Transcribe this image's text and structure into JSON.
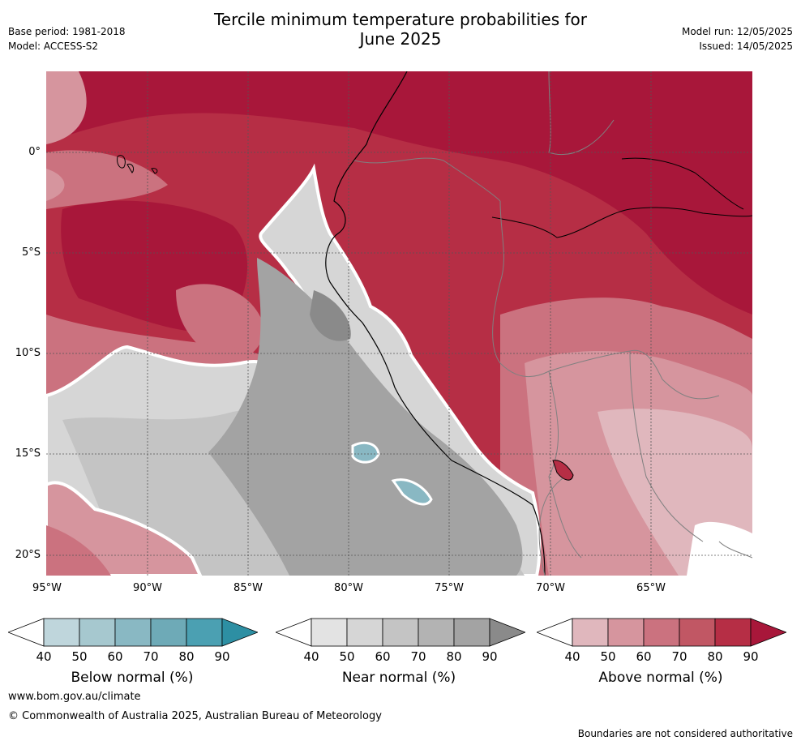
{
  "header": {
    "title_line1": "Tercile minimum temperature probabilities for",
    "title_line2": "June 2025",
    "base_period": "Base period: 1981-2018",
    "model": "Model: ACCESS-S2",
    "model_run": "Model run: 12/05/2025",
    "issued": "Issued: 14/05/2025"
  },
  "map": {
    "lat_labels": [
      "0°",
      "5°S",
      "10°S",
      "15°S",
      "20°S"
    ],
    "lon_labels": [
      "95°W",
      "90°W",
      "85°W",
      "80°W",
      "75°W",
      "70°W",
      "65°W"
    ]
  },
  "colorbars": [
    {
      "label": "Below normal (%)",
      "ticks": [
        "40",
        "50",
        "60",
        "70",
        "80",
        "90"
      ],
      "colors": [
        "#bfd6dc",
        "#a6c8cf",
        "#89b8c3",
        "#6eaab7",
        "#4ba0b2",
        "#2d8fa3"
      ]
    },
    {
      "label": "Near normal (%)",
      "ticks": [
        "40",
        "50",
        "60",
        "70",
        "80",
        "90"
      ],
      "colors": [
        "#e3e3e3",
        "#d6d6d6",
        "#c4c4c4",
        "#b3b3b3",
        "#a3a3a3",
        "#8a8a8a"
      ]
    },
    {
      "label": "Above normal (%)",
      "ticks": [
        "40",
        "50",
        "60",
        "70",
        "80",
        "90"
      ],
      "colors": [
        "#e0b7bd",
        "#d6959e",
        "#cb727f",
        "#c15764",
        "#b62e45",
        "#a8173a"
      ]
    }
  ],
  "footer": {
    "website": "www.bom.gov.au/climate",
    "copyright": "© Commonwealth of Australia 2025, Australian Bureau of Meteorology",
    "disclaimer": "Boundaries are not considered authoritative"
  }
}
